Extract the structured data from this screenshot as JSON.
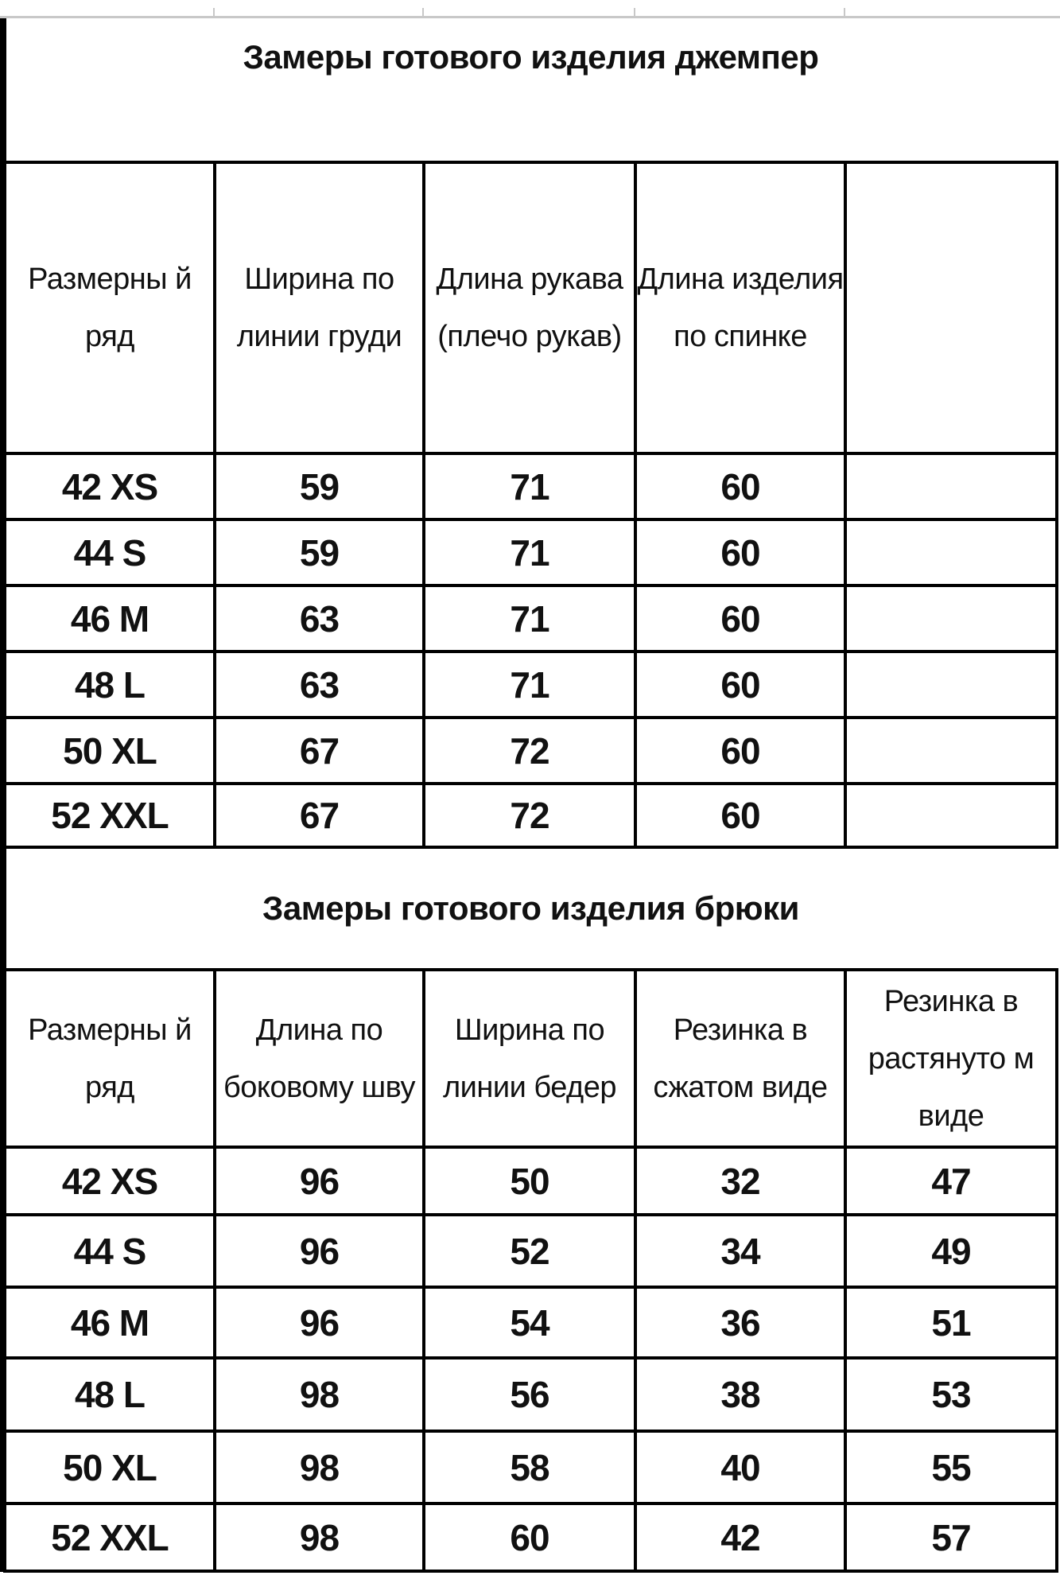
{
  "jumper": {
    "title": "Замеры готового изделия джемпер",
    "headers": [
      "Размерны й ряд",
      "Ширина по линии груди",
      "Длина рукава (плечо рукав)",
      "Длина изделия по спинке",
      ""
    ],
    "rows": [
      [
        "42 XS",
        "59",
        "71",
        "60",
        ""
      ],
      [
        "44 S",
        "59",
        "71",
        "60",
        ""
      ],
      [
        "46 M",
        "63",
        "71",
        "60",
        ""
      ],
      [
        "48 L",
        "63",
        "71",
        "60",
        ""
      ],
      [
        "50 XL",
        "67",
        "72",
        "60",
        ""
      ],
      [
        "52 XXL",
        "67",
        "72",
        "60",
        ""
      ]
    ]
  },
  "trousers": {
    "title": "Замеры готового изделия брюки",
    "headers": [
      "Размерны й ряд",
      "Длина по боковому шву",
      "Ширина по линии бедер",
      "Резинка в сжатом виде",
      "Резинка в растянуто м виде"
    ],
    "rows": [
      [
        "42 XS",
        "96",
        "50",
        "32",
        "47"
      ],
      [
        "44 S",
        "96",
        "52",
        "34",
        "49"
      ],
      [
        "46 M",
        "96",
        "54",
        "36",
        "51"
      ],
      [
        "48 L",
        "98",
        "56",
        "38",
        "53"
      ],
      [
        "50 XL",
        "98",
        "58",
        "40",
        "55"
      ],
      [
        "52 XXL",
        "98",
        "60",
        "42",
        "57"
      ]
    ]
  }
}
